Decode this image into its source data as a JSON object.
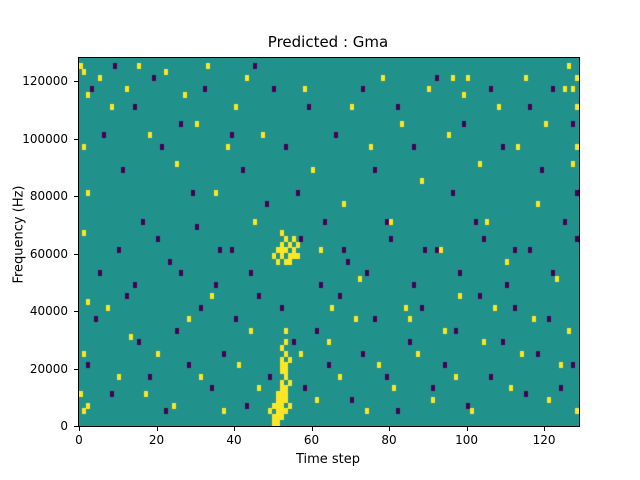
{
  "figure": {
    "background": "#ffffff"
  },
  "chart_data": {
    "type": "heatmap",
    "title": "Predicted : Gma",
    "xlabel": "Time step",
    "ylabel": "Frequency (Hz)",
    "x_range": [
      0,
      129
    ],
    "y_range": [
      0,
      128000
    ],
    "x_ticks": [
      0,
      20,
      40,
      60,
      80,
      100,
      120
    ],
    "y_ticks": [
      0,
      20000,
      40000,
      60000,
      80000,
      100000,
      120000
    ],
    "grid": false,
    "legend": "none",
    "colors": {
      "background": "#21918c",
      "high": "#fde725",
      "low": "#440154",
      "figure_bg": "#ffffff",
      "axis": "#000000"
    },
    "cell": {
      "time_steps": 129,
      "freq_bins": 64,
      "freq_bin_hz": 2000
    },
    "yellow_cells": [
      [
        49,
        2
      ],
      [
        50,
        0
      ],
      [
        50,
        1
      ],
      [
        50,
        3
      ],
      [
        51,
        0
      ],
      [
        51,
        1
      ],
      [
        51,
        2
      ],
      [
        51,
        3
      ],
      [
        51,
        4
      ],
      [
        51,
        5
      ],
      [
        52,
        1
      ],
      [
        52,
        2
      ],
      [
        52,
        3
      ],
      [
        52,
        4
      ],
      [
        52,
        5
      ],
      [
        52,
        6
      ],
      [
        52,
        7
      ],
      [
        52,
        9
      ],
      [
        52,
        10
      ],
      [
        52,
        11
      ],
      [
        52,
        13
      ],
      [
        53,
        2
      ],
      [
        53,
        4
      ],
      [
        53,
        5
      ],
      [
        53,
        6
      ],
      [
        53,
        8
      ],
      [
        53,
        9
      ],
      [
        53,
        10
      ],
      [
        53,
        12
      ],
      [
        53,
        14
      ],
      [
        53,
        16
      ],
      [
        54,
        3
      ],
      [
        54,
        7
      ],
      [
        54,
        11
      ],
      [
        50,
        29
      ],
      [
        51,
        28
      ],
      [
        51,
        30
      ],
      [
        52,
        29
      ],
      [
        52,
        30
      ],
      [
        52,
        31
      ],
      [
        52,
        33
      ],
      [
        53,
        28
      ],
      [
        53,
        30
      ],
      [
        53,
        32
      ],
      [
        54,
        28
      ],
      [
        54,
        29
      ],
      [
        54,
        31
      ],
      [
        55,
        29
      ],
      [
        55,
        30
      ],
      [
        55,
        32
      ],
      [
        56,
        29
      ],
      [
        56,
        31
      ],
      [
        0,
        62
      ],
      [
        0,
        5
      ],
      [
        1,
        61
      ],
      [
        1,
        48
      ],
      [
        1,
        33
      ],
      [
        1,
        12
      ],
      [
        1,
        2
      ],
      [
        2,
        57
      ],
      [
        2,
        40
      ],
      [
        2,
        21
      ],
      [
        2,
        3
      ],
      [
        5,
        60
      ],
      [
        8,
        55
      ],
      [
        12,
        58
      ],
      [
        15,
        62
      ],
      [
        18,
        50
      ],
      [
        22,
        61
      ],
      [
        25,
        45
      ],
      [
        27,
        57
      ],
      [
        30,
        52
      ],
      [
        33,
        62
      ],
      [
        35,
        40
      ],
      [
        38,
        48
      ],
      [
        40,
        55
      ],
      [
        43,
        60
      ],
      [
        45,
        35
      ],
      [
        47,
        50
      ],
      [
        58,
        58
      ],
      [
        60,
        44
      ],
      [
        62,
        30
      ],
      [
        65,
        20
      ],
      [
        68,
        38
      ],
      [
        70,
        55
      ],
      [
        72,
        25
      ],
      [
        75,
        48
      ],
      [
        78,
        60
      ],
      [
        80,
        35
      ],
      [
        83,
        52
      ],
      [
        85,
        18
      ],
      [
        88,
        42
      ],
      [
        90,
        58
      ],
      [
        93,
        30
      ],
      [
        95,
        50
      ],
      [
        98,
        22
      ],
      [
        100,
        60
      ],
      [
        103,
        45
      ],
      [
        105,
        35
      ],
      [
        108,
        55
      ],
      [
        110,
        28
      ],
      [
        113,
        48
      ],
      [
        115,
        60
      ],
      [
        118,
        38
      ],
      [
        120,
        52
      ],
      [
        123,
        25
      ],
      [
        125,
        58
      ],
      [
        127,
        45
      ],
      [
        128,
        60
      ],
      [
        7,
        20
      ],
      [
        10,
        8
      ],
      [
        13,
        15
      ],
      [
        17,
        5
      ],
      [
        20,
        12
      ],
      [
        24,
        3
      ],
      [
        28,
        18
      ],
      [
        31,
        8
      ],
      [
        34,
        22
      ],
      [
        37,
        2
      ],
      [
        41,
        10
      ],
      [
        44,
        16
      ],
      [
        46,
        6
      ],
      [
        57,
        12
      ],
      [
        61,
        4
      ],
      [
        64,
        14
      ],
      [
        67,
        8
      ],
      [
        71,
        18
      ],
      [
        74,
        2
      ],
      [
        77,
        10
      ],
      [
        81,
        6
      ],
      [
        84,
        20
      ],
      [
        87,
        12
      ],
      [
        91,
        4
      ],
      [
        94,
        16
      ],
      [
        97,
        8
      ],
      [
        101,
        2
      ],
      [
        104,
        14
      ],
      [
        107,
        20
      ],
      [
        111,
        6
      ],
      [
        114,
        12
      ],
      [
        117,
        18
      ],
      [
        121,
        4
      ],
      [
        124,
        10
      ],
      [
        126,
        16
      ],
      [
        128,
        2
      ],
      [
        96,
        60
      ],
      [
        99,
        57
      ],
      [
        126,
        62
      ],
      [
        127,
        58
      ],
      [
        128,
        55
      ],
      [
        128,
        48
      ]
    ],
    "purple_cells": [
      [
        3,
        58
      ],
      [
        6,
        50
      ],
      [
        9,
        62
      ],
      [
        11,
        44
      ],
      [
        14,
        55
      ],
      [
        16,
        35
      ],
      [
        19,
        60
      ],
      [
        21,
        48
      ],
      [
        23,
        28
      ],
      [
        26,
        52
      ],
      [
        29,
        40
      ],
      [
        32,
        58
      ],
      [
        36,
        30
      ],
      [
        39,
        50
      ],
      [
        42,
        44
      ],
      [
        45,
        62
      ],
      [
        48,
        38
      ],
      [
        50,
        58
      ],
      [
        53,
        48
      ],
      [
        56,
        40
      ],
      [
        59,
        55
      ],
      [
        63,
        35
      ],
      [
        66,
        50
      ],
      [
        69,
        28
      ],
      [
        73,
        58
      ],
      [
        76,
        44
      ],
      [
        79,
        35
      ],
      [
        82,
        55
      ],
      [
        86,
        48
      ],
      [
        89,
        30
      ],
      [
        92,
        60
      ],
      [
        96,
        40
      ],
      [
        99,
        52
      ],
      [
        102,
        35
      ],
      [
        106,
        58
      ],
      [
        109,
        48
      ],
      [
        112,
        30
      ],
      [
        116,
        55
      ],
      [
        119,
        44
      ],
      [
        122,
        58
      ],
      [
        125,
        35
      ],
      [
        127,
        52
      ],
      [
        128,
        40
      ],
      [
        5,
        26
      ],
      [
        10,
        30
      ],
      [
        14,
        24
      ],
      [
        20,
        32
      ],
      [
        26,
        26
      ],
      [
        30,
        34
      ],
      [
        35,
        24
      ],
      [
        39,
        30
      ],
      [
        44,
        26
      ],
      [
        57,
        32
      ],
      [
        62,
        24
      ],
      [
        68,
        30
      ],
      [
        74,
        26
      ],
      [
        80,
        32
      ],
      [
        86,
        24
      ],
      [
        92,
        30
      ],
      [
        98,
        26
      ],
      [
        104,
        32
      ],
      [
        110,
        24
      ],
      [
        116,
        30
      ],
      [
        122,
        26
      ],
      [
        128,
        32
      ],
      [
        2,
        10
      ],
      [
        4,
        18
      ],
      [
        8,
        5
      ],
      [
        12,
        22
      ],
      [
        15,
        14
      ],
      [
        18,
        8
      ],
      [
        22,
        2
      ],
      [
        25,
        16
      ],
      [
        28,
        10
      ],
      [
        31,
        20
      ],
      [
        34,
        6
      ],
      [
        37,
        12
      ],
      [
        40,
        18
      ],
      [
        43,
        3
      ],
      [
        46,
        22
      ],
      [
        49,
        8
      ],
      [
        52,
        20
      ],
      [
        55,
        14
      ],
      [
        58,
        6
      ],
      [
        61,
        16
      ],
      [
        64,
        10
      ],
      [
        67,
        22
      ],
      [
        70,
        4
      ],
      [
        73,
        12
      ],
      [
        76,
        18
      ],
      [
        79,
        8
      ],
      [
        82,
        2
      ],
      [
        85,
        14
      ],
      [
        88,
        20
      ],
      [
        91,
        6
      ],
      [
        94,
        10
      ],
      [
        97,
        16
      ],
      [
        100,
        3
      ],
      [
        103,
        22
      ],
      [
        106,
        8
      ],
      [
        109,
        14
      ],
      [
        112,
        20
      ],
      [
        115,
        5
      ],
      [
        118,
        12
      ],
      [
        121,
        18
      ],
      [
        124,
        6
      ],
      [
        127,
        10
      ]
    ],
    "layout": {
      "axes_left": 78,
      "axes_top": 57,
      "axes_width": 500,
      "axes_height": 368
    }
  }
}
